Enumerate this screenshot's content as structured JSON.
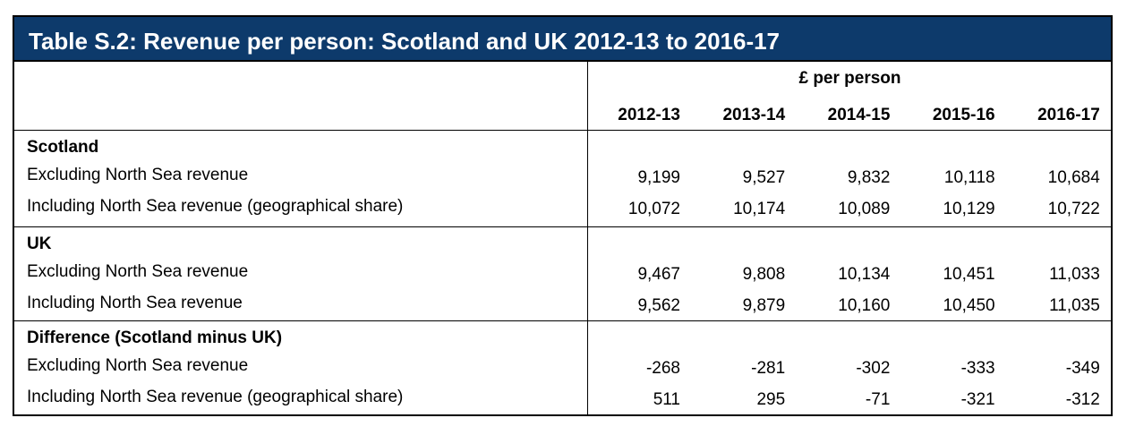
{
  "title": "Table S.2: Revenue per person: Scotland and UK 2012-13 to 2016-17",
  "table": {
    "unit": "£ per person",
    "columns": [
      "2012-13",
      "2013-14",
      "2014-15",
      "2015-16",
      "2016-17"
    ],
    "sections": [
      {
        "heading": "Scotland",
        "rows": [
          {
            "label": "Excluding North Sea revenue",
            "values": [
              "9,199",
              "9,527",
              "9,832",
              "10,118",
              "10,684"
            ]
          },
          {
            "label": "Including North Sea revenue (geographical share)",
            "values": [
              "10,072",
              "10,174",
              "10,089",
              "10,129",
              "10,722"
            ]
          }
        ]
      },
      {
        "heading": "UK",
        "rows": [
          {
            "label": "Excluding North Sea revenue",
            "values": [
              "9,467",
              "9,808",
              "10,134",
              "10,451",
              "11,033"
            ]
          },
          {
            "label": "Including North Sea revenue",
            "values": [
              "9,562",
              "9,879",
              "10,160",
              "10,450",
              "11,035"
            ]
          }
        ]
      },
      {
        "heading": "Difference (Scotland minus UK)",
        "rows": [
          {
            "label": "Excluding North Sea revenue",
            "values": [
              "-268",
              "-281",
              "-302",
              "-333",
              "-349"
            ]
          },
          {
            "label": "Including North Sea revenue (geographical share)",
            "values": [
              "511",
              "295",
              "-71",
              "-321",
              "-312"
            ]
          }
        ]
      }
    ]
  }
}
